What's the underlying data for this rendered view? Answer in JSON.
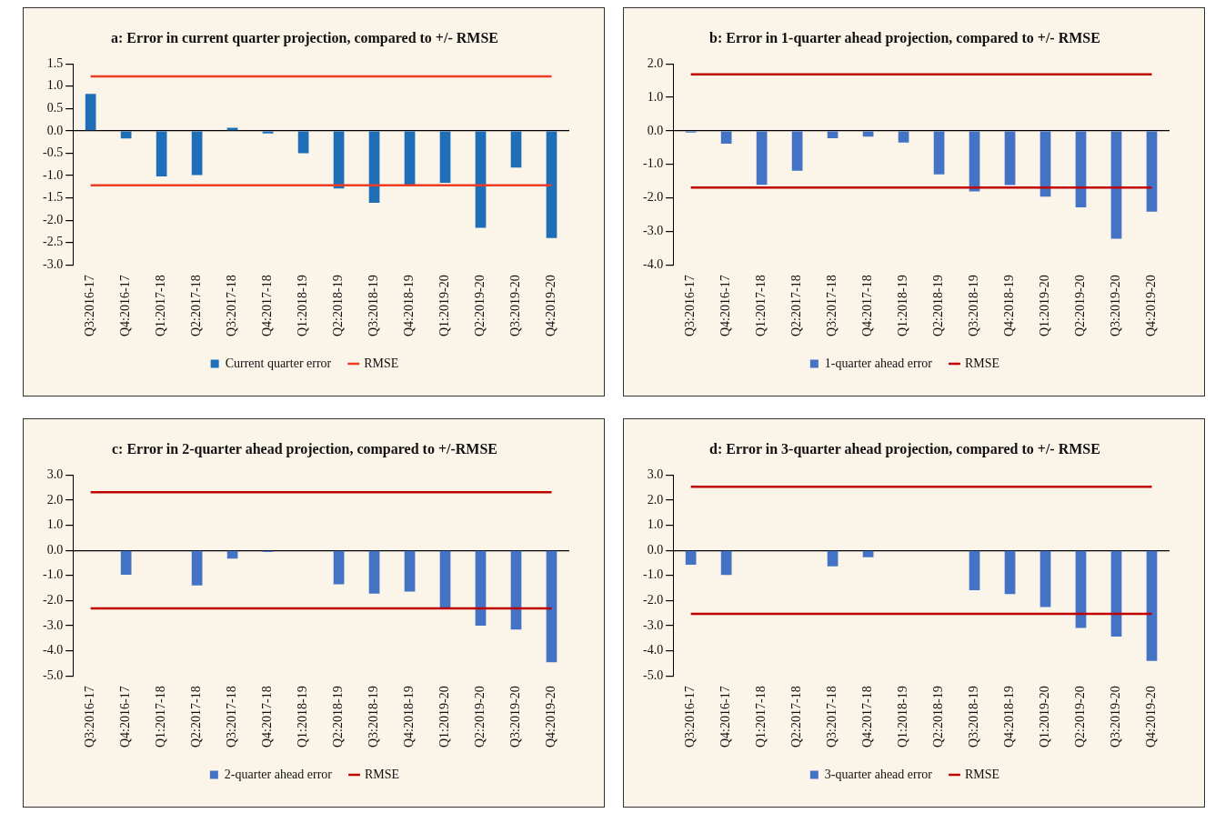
{
  "chart_data": [
    {
      "type": "bar",
      "title": "a: Error in current quarter projection, compared to +/- RMSE",
      "categories": [
        "Q3:2016-17",
        "Q4:2016-17",
        "Q1:2017-18",
        "Q2:2017-18",
        "Q3:2017-18",
        "Q4:2017-18",
        "Q1:2018-19",
        "Q2:2018-19",
        "Q3:2018-19",
        "Q4:2018-19",
        "Q1:2019-20",
        "Q2:2019-20",
        "Q3:2019-20",
        "Q4:2019-20"
      ],
      "series": [
        {
          "name": "Current quarter error",
          "color": "#1f6fb8",
          "values": [
            0.83,
            -0.17,
            -1.02,
            -0.99,
            0.07,
            -0.06,
            -0.5,
            -1.29,
            -1.61,
            -1.22,
            -1.16,
            -2.17,
            -0.82,
            -2.4
          ]
        },
        {
          "name": "RMSE",
          "type": "line",
          "color": "#ee3b24",
          "values": [
            1.22,
            1.22,
            1.22,
            1.22,
            1.22,
            1.22,
            1.22,
            1.22,
            1.22,
            1.22,
            1.22,
            1.22,
            1.22,
            1.22
          ]
        },
        {
          "type": "line",
          "color": "#ee3b24",
          "values": [
            -1.22,
            -1.22,
            -1.22,
            -1.22,
            -1.22,
            -1.22,
            -1.22,
            -1.22,
            -1.22,
            -1.22,
            -1.22,
            -1.22,
            -1.22,
            -1.22
          ]
        }
      ],
      "ylim": [
        -3,
        1.5
      ],
      "yticks": [
        {
          "value": -3,
          "label": "-3.0"
        },
        {
          "value": -2.5,
          "label": "-2.5"
        },
        {
          "value": -2,
          "label": "-2.0"
        },
        {
          "value": -1.5,
          "label": "-1.5"
        },
        {
          "value": -1,
          "label": "-1.0"
        },
        {
          "value": -0.5,
          "label": "-0.5"
        },
        {
          "value": 0,
          "label": "0.0"
        },
        {
          "value": 0.5,
          "label": "0.5"
        },
        {
          "value": 1,
          "label": "1.0"
        },
        {
          "value": 1.5,
          "label": "1.5"
        }
      ],
      "legend": "bottom",
      "marker": "none"
    },
    {
      "type": "bar",
      "title": "b: Error in 1-quarter ahead projection, compared to +/- RMSE",
      "categories": [
        "Q3:2016-17",
        "Q4:2016-17",
        "Q1:2017-18",
        "Q2:2017-18",
        "Q3:2017-18",
        "Q4:2017-18",
        "Q1:2018-19",
        "Q2:2018-19",
        "Q3:2018-19",
        "Q4:2018-19",
        "Q1:2019-20",
        "Q2:2019-20",
        "Q3:2019-20",
        "Q4:2019-20"
      ],
      "series": [
        {
          "name": "1-quarter ahead error",
          "color": "#4472c4",
          "values": [
            -0.05,
            -0.38,
            -1.61,
            -1.19,
            -0.22,
            -0.17,
            -0.35,
            -1.3,
            -1.81,
            -1.62,
            -1.96,
            -2.28,
            -3.22,
            -2.41
          ]
        },
        {
          "name": "RMSE",
          "type": "line",
          "color": "#c00000",
          "values": [
            1.69,
            1.69,
            1.69,
            1.69,
            1.69,
            1.69,
            1.69,
            1.69,
            1.69,
            1.69,
            1.69,
            1.69,
            1.69,
            1.69
          ]
        },
        {
          "type": "line",
          "color": "#c00000",
          "values": [
            -1.69,
            -1.69,
            -1.69,
            -1.69,
            -1.69,
            -1.69,
            -1.69,
            -1.69,
            -1.69,
            -1.69,
            -1.69,
            -1.69,
            -1.69,
            -1.69
          ]
        }
      ],
      "ylim": [
        -4,
        2
      ],
      "yticks": [
        {
          "value": -4,
          "label": "-4.0"
        },
        {
          "value": -3,
          "label": "-3.0"
        },
        {
          "value": -2,
          "label": "-2.0"
        },
        {
          "value": -1,
          "label": "-1.0"
        },
        {
          "value": 0,
          "label": "0.0"
        },
        {
          "value": 1,
          "label": "1.0"
        },
        {
          "value": 2,
          "label": "2.0"
        }
      ],
      "legend": "bottom",
      "marker": "none"
    },
    {
      "type": "bar",
      "title": "c: Error in 2-quarter ahead projection, compared to +/-RMSE",
      "categories": [
        "Q3:2016-17",
        "Q4:2016-17",
        "Q1:2017-18",
        "Q2:2017-18",
        "Q3:2017-18",
        "Q4:2017-18",
        "Q1:2018-19",
        "Q2:2018-19",
        "Q3:2018-19",
        "Q4:2018-19",
        "Q1:2019-20",
        "Q2:2019-20",
        "Q3:2019-20",
        "Q4:2019-20"
      ],
      "series": [
        {
          "name": "2-quarter ahead error",
          "color": "#4472c4",
          "values": [
            null,
            -0.97,
            null,
            -1.4,
            -0.33,
            -0.07,
            null,
            -1.35,
            -1.72,
            -1.64,
            -2.3,
            -3.0,
            -3.15,
            -4.45
          ]
        },
        {
          "name": "RMSE",
          "type": "line",
          "color": "#c00000",
          "values": [
            2.31,
            2.31,
            2.31,
            2.31,
            2.31,
            2.31,
            2.31,
            2.31,
            2.31,
            2.31,
            2.31,
            2.31,
            2.31,
            2.31
          ]
        },
        {
          "type": "line",
          "color": "#c00000",
          "values": [
            -2.31,
            -2.31,
            -2.31,
            -2.31,
            -2.31,
            -2.31,
            -2.31,
            -2.31,
            -2.31,
            -2.31,
            -2.31,
            -2.31,
            -2.31,
            -2.31
          ]
        }
      ],
      "ylim": [
        -5,
        3
      ],
      "yticks": [
        {
          "value": -5,
          "label": "-5.0"
        },
        {
          "value": -4,
          "label": "-4.0"
        },
        {
          "value": -3,
          "label": "-3.0"
        },
        {
          "value": -2,
          "label": "-2.0"
        },
        {
          "value": -1,
          "label": "-1.0"
        },
        {
          "value": 0,
          "label": "0.0"
        },
        {
          "value": 1,
          "label": "1.0"
        },
        {
          "value": 2,
          "label": "2.0"
        },
        {
          "value": 3,
          "label": "3.0"
        }
      ],
      "legend": "bottom",
      "marker": "none"
    },
    {
      "type": "bar",
      "title": "d: Error in 3-quarter ahead projection, compared to +/- RMSE",
      "categories": [
        "Q3:2016-17",
        "Q4:2016-17",
        "Q1:2017-18",
        "Q2:2017-18",
        "Q3:2017-18",
        "Q4:2017-18",
        "Q1:2018-19",
        "Q2:2018-19",
        "Q3:2018-19",
        "Q4:2018-19",
        "Q1:2019-20",
        "Q2:2019-20",
        "Q3:2019-20",
        "Q4:2019-20"
      ],
      "series": [
        {
          "name": "3-quarter ahead error",
          "color": "#4472c4",
          "values": [
            -0.57,
            -0.98,
            null,
            null,
            -0.64,
            -0.28,
            null,
            null,
            -1.59,
            -1.74,
            -2.26,
            -3.09,
            -3.43,
            -4.4
          ]
        },
        {
          "name": "RMSE",
          "type": "line",
          "color": "#c00000",
          "values": [
            2.53,
            2.53,
            2.53,
            2.53,
            2.53,
            2.53,
            2.53,
            2.53,
            2.53,
            2.53,
            2.53,
            2.53,
            2.53,
            2.53
          ]
        },
        {
          "type": "line",
          "color": "#c00000",
          "values": [
            -2.53,
            -2.53,
            -2.53,
            -2.53,
            -2.53,
            -2.53,
            -2.53,
            -2.53,
            -2.53,
            -2.53,
            -2.53,
            -2.53,
            -2.53,
            -2.53
          ]
        }
      ],
      "ylim": [
        -5,
        3
      ],
      "yticks": [
        {
          "value": -5,
          "label": "-5.0"
        },
        {
          "value": -4,
          "label": "-4.0"
        },
        {
          "value": -3,
          "label": "-3.0"
        },
        {
          "value": -2,
          "label": "-2.0"
        },
        {
          "value": -1,
          "label": "-1.0"
        },
        {
          "value": 0,
          "label": "0.0"
        },
        {
          "value": 1,
          "label": "1.0"
        },
        {
          "value": 2,
          "label": "2.0"
        },
        {
          "value": 3,
          "label": "3.0"
        }
      ],
      "legend": "bottom",
      "marker": "none"
    }
  ]
}
